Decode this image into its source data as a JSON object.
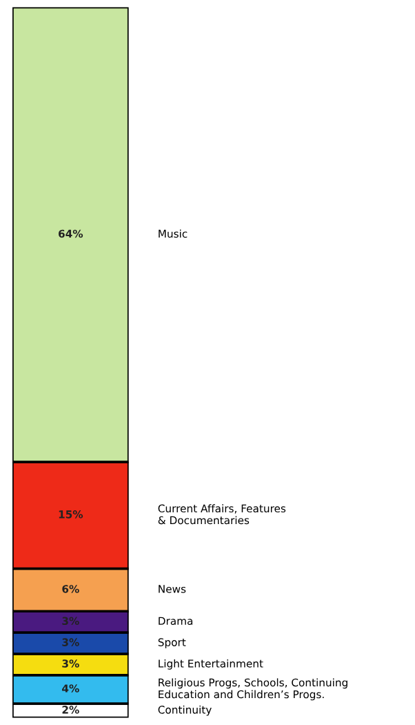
{
  "chart_data": {
    "type": "bar",
    "stacked": true,
    "categories": [
      null
    ],
    "series": [
      {
        "name": "Continuity",
        "color": "#ffffff",
        "values": [
          2
        ],
        "value_labels": [
          "2%"
        ]
      },
      {
        "name": "Religious Progs, Schools, Continuing\nEducation and Children’s Progs.",
        "color": "#33bbee",
        "values": [
          4
        ],
        "value_labels": [
          "4%"
        ]
      },
      {
        "name": "Light Entertainment",
        "color": "#f5dd10",
        "values": [
          3
        ],
        "value_labels": [
          "3%"
        ]
      },
      {
        "name": "Sport",
        "color": "#1a4aaa",
        "values": [
          3
        ],
        "value_labels": [
          "3%"
        ]
      },
      {
        "name": "Drama",
        "color": "#4a1a80",
        "values": [
          3
        ],
        "value_labels": [
          "3%"
        ]
      },
      {
        "name": "News",
        "color": "#f5a050",
        "values": [
          6
        ],
        "value_labels": [
          "6%"
        ]
      },
      {
        "name": "Current Affairs, Features\n& Documentaries",
        "color": "#ee2a18",
        "values": [
          15
        ],
        "value_labels": [
          "15%"
        ]
      },
      {
        "name": "Music",
        "color": "#c8e6a0",
        "values": [
          64
        ],
        "value_labels": [
          "64%"
        ]
      }
    ]
  }
}
